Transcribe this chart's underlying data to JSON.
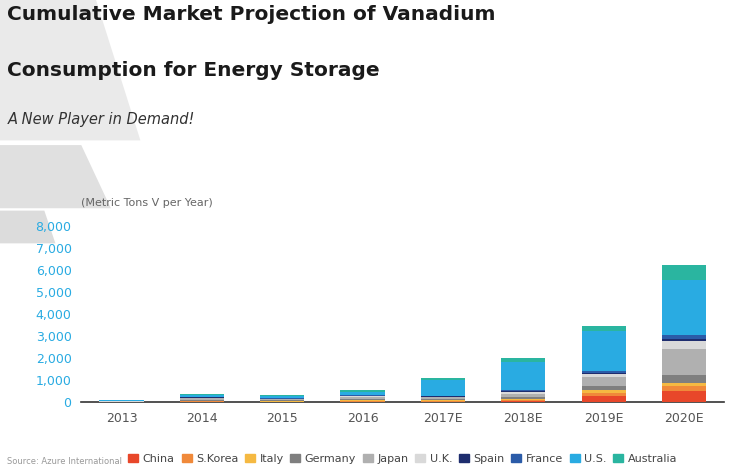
{
  "title_line1": "Cumulative Market Projection of Vanadium",
  "title_line2": "Consumption for Energy Storage",
  "subtitle": "A New Player in Demand!",
  "ylabel": "(Metric Tons V per Year)",
  "source": "Source: Azure International",
  "categories": [
    "2013",
    "2014",
    "2015",
    "2016",
    "2017E",
    "2018E",
    "2019E",
    "2020E"
  ],
  "series_order": [
    "China",
    "S.Korea",
    "Italy",
    "Germany",
    "Japan",
    "U.K.",
    "Spain",
    "France",
    "U.S.",
    "Australia"
  ],
  "series": {
    "China": [
      10,
      20,
      15,
      25,
      30,
      50,
      300,
      500
    ],
    "S.Korea": [
      5,
      30,
      20,
      30,
      30,
      50,
      150,
      250
    ],
    "Italy": [
      5,
      30,
      25,
      40,
      30,
      50,
      100,
      150
    ],
    "Germany": [
      10,
      50,
      40,
      60,
      60,
      100,
      200,
      350
    ],
    "Japan": [
      10,
      60,
      50,
      80,
      80,
      150,
      400,
      1200
    ],
    "U.K.": [
      5,
      30,
      20,
      40,
      40,
      80,
      150,
      350
    ],
    "Spain": [
      5,
      10,
      10,
      15,
      15,
      30,
      50,
      100
    ],
    "France": [
      10,
      20,
      20,
      30,
      30,
      50,
      100,
      150
    ],
    "U.S.": [
      50,
      100,
      80,
      150,
      700,
      1300,
      1800,
      2500
    ],
    "Australia": [
      20,
      50,
      40,
      80,
      100,
      150,
      200,
      700
    ]
  },
  "colors": {
    "China": "#e8472a",
    "S.Korea": "#f0893a",
    "Italy": "#f5b942",
    "Germany": "#7f7f7f",
    "Japan": "#b0b0b0",
    "U.K.": "#d9d9d9",
    "Spain": "#1e2d6e",
    "France": "#2b5ba8",
    "U.S.": "#29abe2",
    "Australia": "#2ab5a0"
  },
  "ylim": [
    0,
    8500
  ],
  "yticks": [
    0,
    1000,
    2000,
    3000,
    4000,
    5000,
    6000,
    7000,
    8000
  ],
  "background_color": "#ffffff",
  "title_color": "#1a1a1a",
  "subtitle_color": "#333333",
  "tick_color_y": "#29abe2",
  "tick_color_x": "#555555",
  "bar_width": 0.55
}
